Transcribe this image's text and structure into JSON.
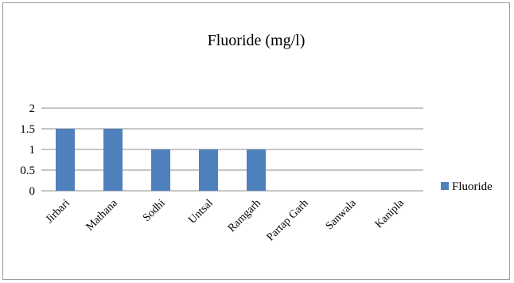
{
  "chart_data": {
    "type": "bar",
    "title": "Fluoride (mg/l)",
    "xlabel": "",
    "ylabel": "",
    "categories": [
      "Jirbari",
      "Mathana",
      "Sodhi",
      "Untsal",
      "Ramgarh",
      "Partap Garh",
      "Sanwala",
      "Kanipla"
    ],
    "series": [
      {
        "name": "Fluoride",
        "values": [
          1.5,
          1.5,
          1.0,
          1.0,
          1.0,
          0,
          0,
          0
        ]
      }
    ],
    "ylim": [
      0,
      2
    ],
    "yticks": [
      "0",
      "0.5",
      "1",
      "1.5",
      "2"
    ],
    "grid": true,
    "legend_position": "right",
    "colors": {
      "bar": "#4f81bd",
      "grid": "#8c8c8c"
    }
  }
}
